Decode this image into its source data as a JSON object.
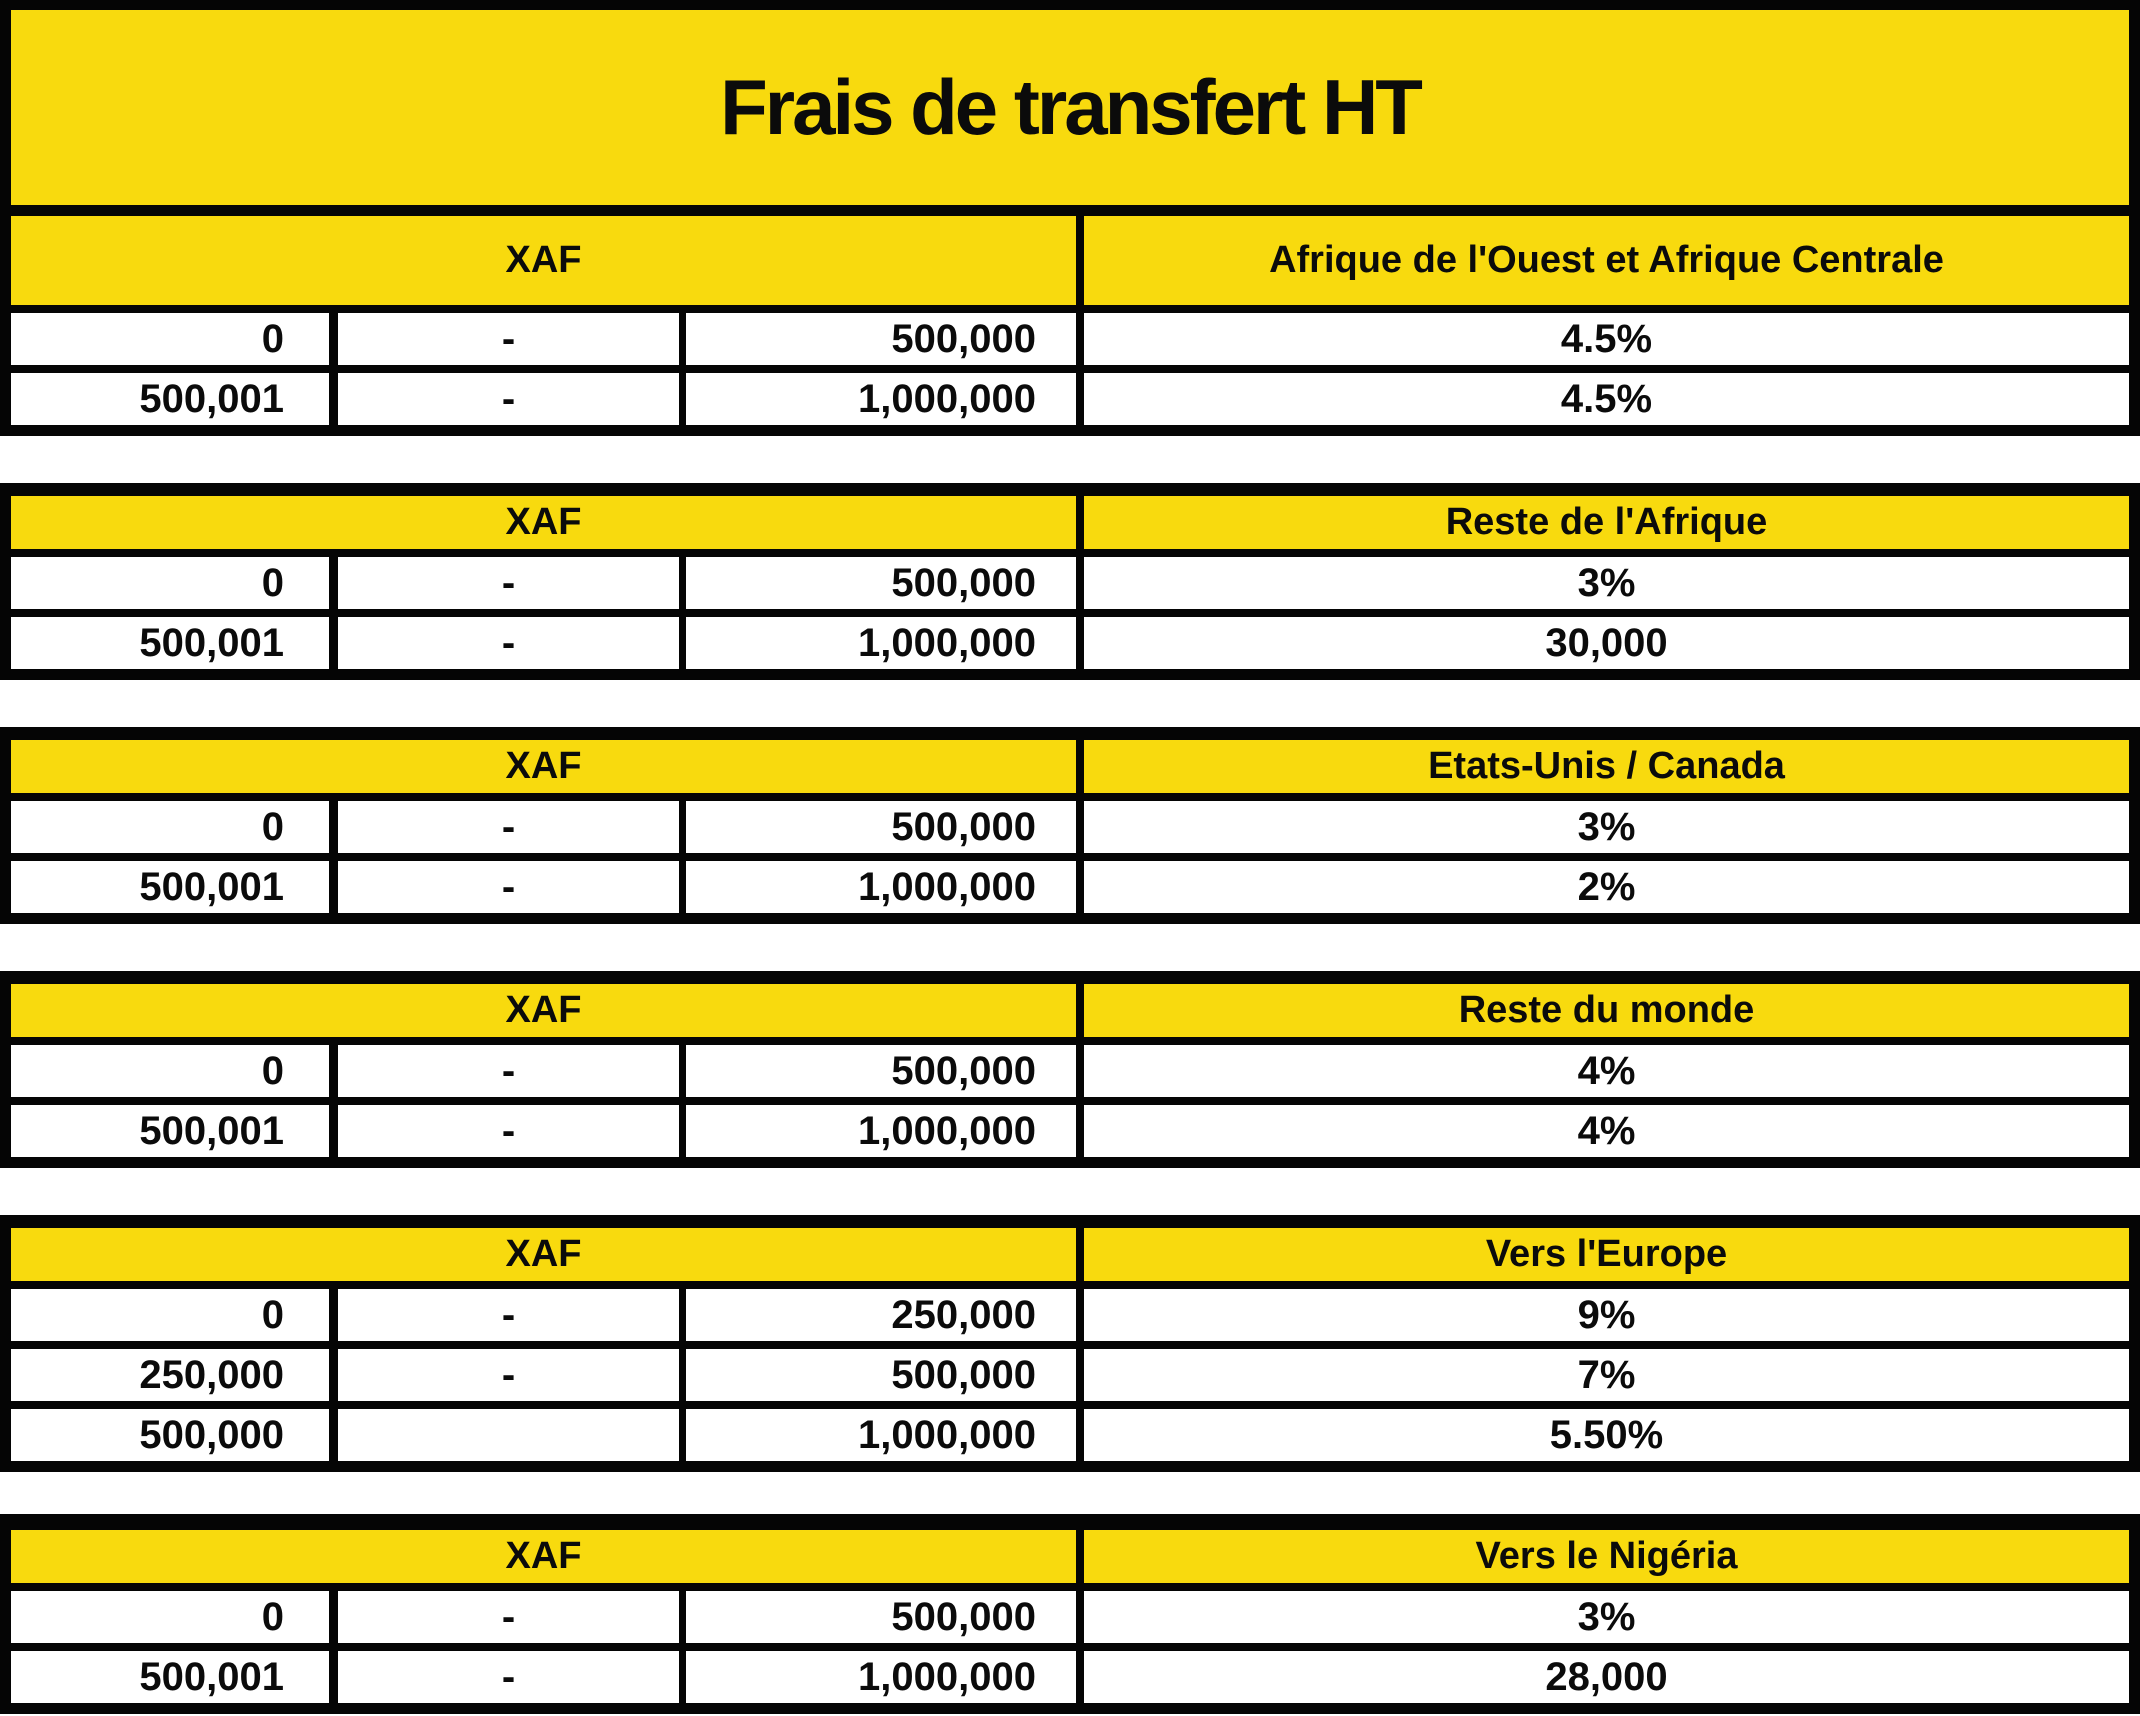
{
  "title": "Frais de transfert HT",
  "currency_label": "XAF",
  "colors": {
    "yellow": "#F8DA0E",
    "black": "#050505",
    "white": "#FFFFFF"
  },
  "sections": [
    {
      "region": "Afrique de l'Ouest et Afrique Centrale",
      "rows": [
        [
          "0",
          "-",
          "500,000",
          "4.5%"
        ],
        [
          "500,001",
          "-",
          "1,000,000",
          "4.5%"
        ]
      ]
    },
    {
      "region": "Reste de l'Afrique",
      "rows": [
        [
          "0",
          "-",
          "500,000",
          "3%"
        ],
        [
          "500,001",
          "-",
          "1,000,000",
          "30,000"
        ]
      ]
    },
    {
      "region": "Etats-Unis / Canada",
      "rows": [
        [
          "0",
          "-",
          "500,000",
          "3%"
        ],
        [
          "500,001",
          "-",
          "1,000,000",
          "2%"
        ]
      ]
    },
    {
      "region": "Reste du monde",
      "rows": [
        [
          "0",
          "-",
          "500,000",
          "4%"
        ],
        [
          "500,001",
          "-",
          "1,000,000",
          "4%"
        ]
      ]
    },
    {
      "region": "Vers l'Europe",
      "rows": [
        [
          "0",
          "-",
          "250,000",
          "9%"
        ],
        [
          "250,000",
          "-",
          "500,000",
          "7%"
        ],
        [
          "500,000",
          "",
          "1,000,000",
          "5.50%"
        ]
      ]
    },
    {
      "region": "Vers le Nigéria",
      "rows": [
        [
          "0",
          "-",
          "500,000",
          "3%"
        ],
        [
          "500,001",
          "-",
          "1,000,000",
          "28,000"
        ]
      ]
    }
  ]
}
